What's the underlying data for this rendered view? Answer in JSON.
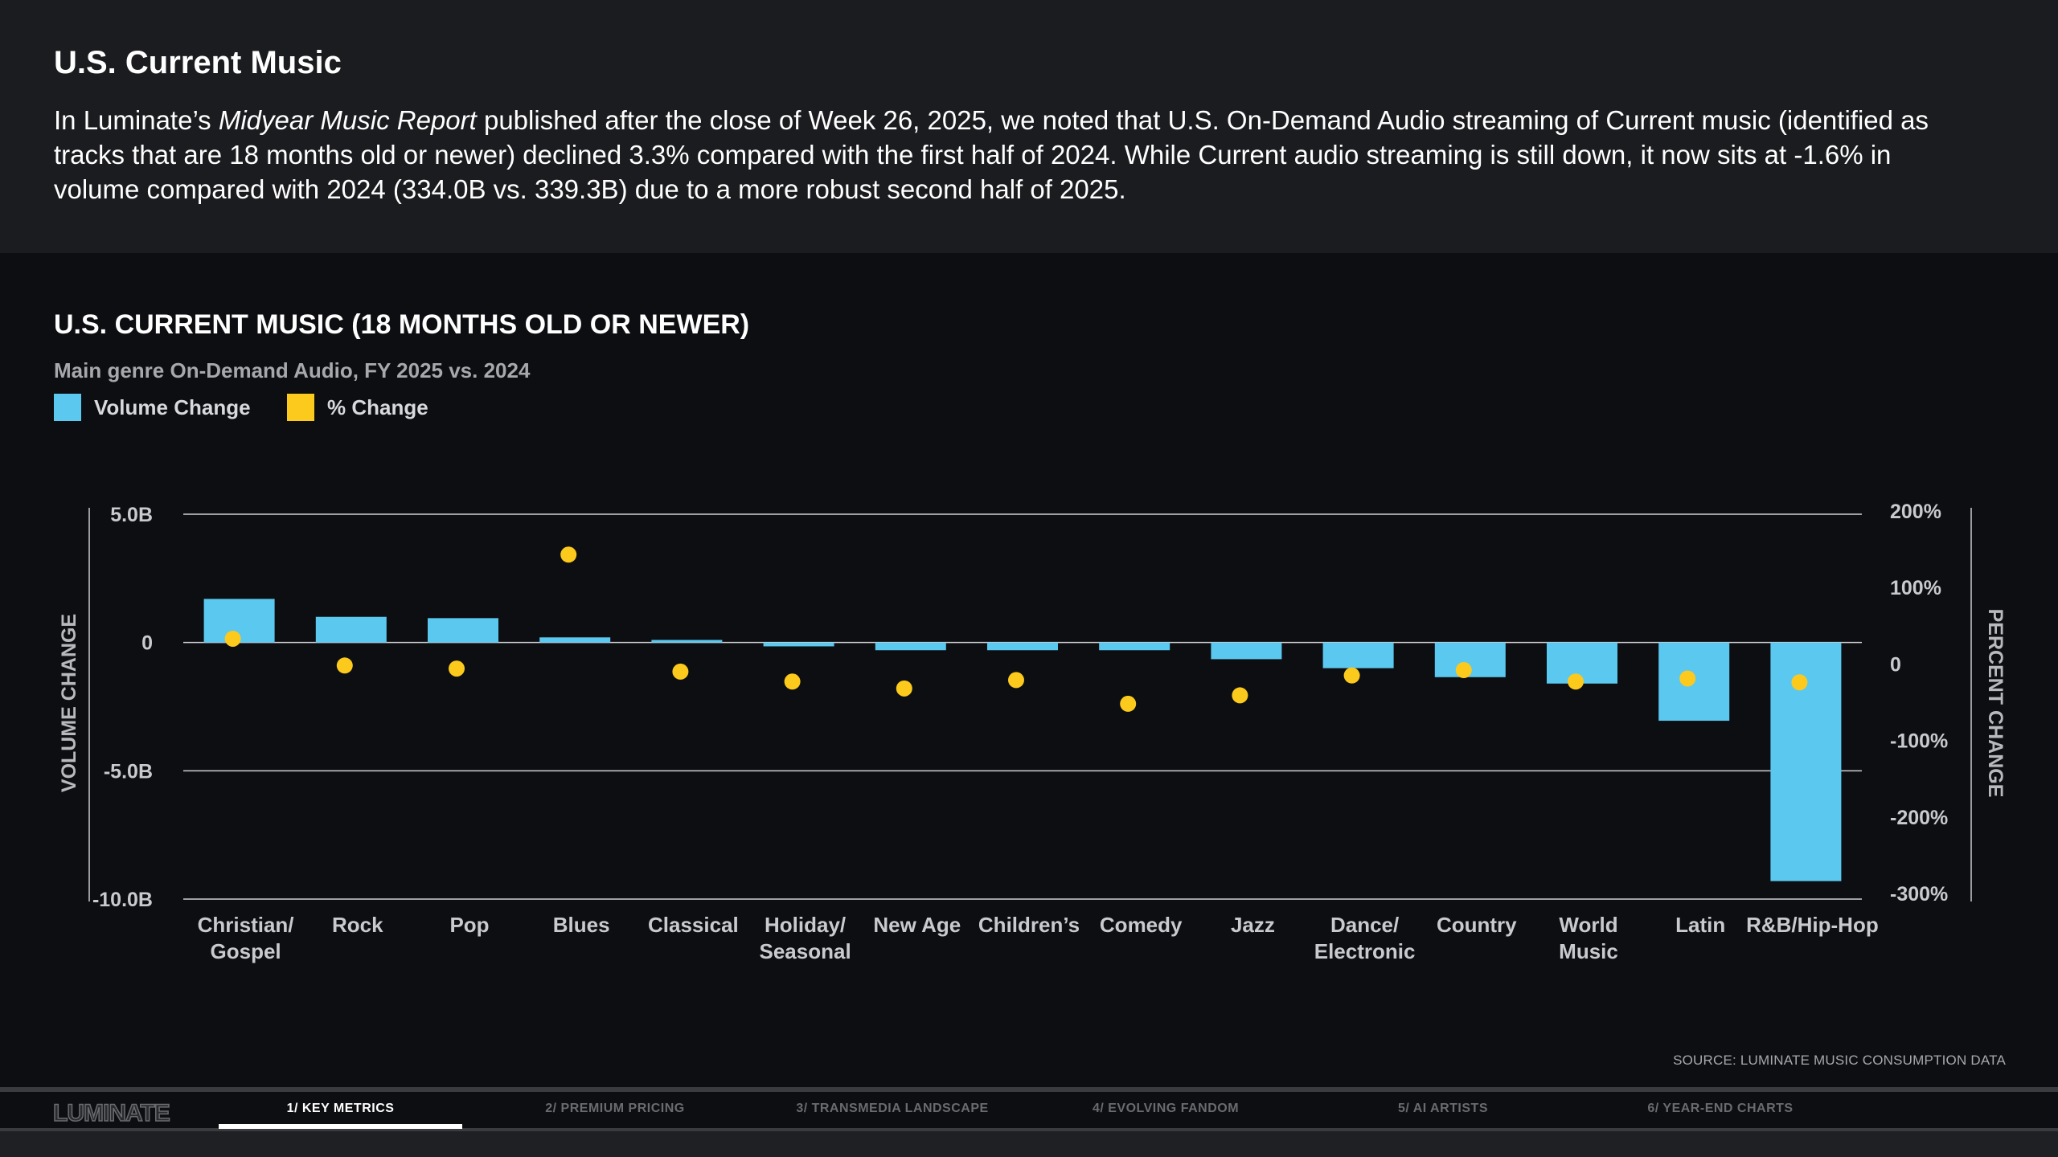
{
  "header": {
    "title": "U.S. Current Music",
    "intro_before": "In Luminate’s ",
    "intro_italic": "Midyear Music Report",
    "intro_after": " published after the close of Week 26, 2025, we noted that U.S. On-Demand Audio streaming of Current music (identified as tracks that are 18 months old or newer) declined 3.3% compared with the first half of 2024. While Current audio streaming is still down, it now sits at -1.6% in volume compared with 2024 (334.0B vs. 339.3B) due to a more robust second half of 2025."
  },
  "colors": {
    "volume_bar": "#5bc8ef",
    "percent_dot": "#fcc91d",
    "background": "#0d0e11",
    "header_bg": "#1b1c1f"
  },
  "chart_data": {
    "type": "bar",
    "title": "U.S. CURRENT MUSIC (18 MONTHS OLD OR NEWER)",
    "subtitle": "Main genre On-Demand Audio, FY 2025 vs. 2024",
    "categories": [
      "Christian/\nGospel",
      "Rock",
      "Pop",
      "Blues",
      "Classical",
      "Holiday/\nSeasonal",
      "New Age",
      "Children’s",
      "Comedy",
      "Jazz",
      "Dance/\nElectronic",
      "Country",
      "World\nMusic",
      "Latin",
      "R&B/Hip-Hop"
    ],
    "series": [
      {
        "name": "Volume Change",
        "axis": "left",
        "mark": "bar",
        "values": [
          1.7,
          1.0,
          0.95,
          0.2,
          0.1,
          -0.15,
          -0.3,
          -0.3,
          -0.3,
          -0.65,
          -1.0,
          -1.35,
          -1.6,
          -3.05,
          -9.3
        ]
      },
      {
        "name": "% Change",
        "axis": "right",
        "mark": "dot",
        "values": [
          33,
          -2,
          -6,
          143,
          -10,
          -23,
          -32,
          -21,
          -52,
          -41,
          -15,
          -8,
          -23,
          -19,
          -24
        ]
      }
    ],
    "left_axis": {
      "label": "VOLUME CHANGE",
      "ylim": [
        -10,
        5
      ],
      "ticks": [
        5,
        0,
        -5,
        -10
      ],
      "tick_labels": [
        "5.0B",
        "0",
        "-5.0B",
        "-10.0B"
      ]
    },
    "right_axis": {
      "label": "PERCENT CHANGE",
      "ylim": [
        -300,
        200
      ],
      "ticks": [
        200,
        100,
        0,
        -100,
        -200,
        -300
      ],
      "tick_labels": [
        "200%",
        "100%",
        "0",
        "-100%",
        "-200%",
        "-300%"
      ]
    },
    "gridlines": [
      5,
      0,
      -5,
      -10
    ],
    "legend_position": "top-left"
  },
  "source": "SOURCE: LUMINATE MUSIC CONSUMPTION DATA",
  "footer": {
    "logo": "LUMINATE",
    "tabs": [
      {
        "label": "1/ KEY METRICS",
        "active": true
      },
      {
        "label": "2/ PREMIUM PRICING",
        "active": false
      },
      {
        "label": "3/ TRANSMEDIA LANDSCAPE",
        "active": false
      },
      {
        "label": "4/ EVOLVING FANDOM",
        "active": false
      },
      {
        "label": "5/ AI ARTISTS",
        "active": false
      },
      {
        "label": "6/ YEAR-END CHARTS",
        "active": false
      }
    ]
  }
}
